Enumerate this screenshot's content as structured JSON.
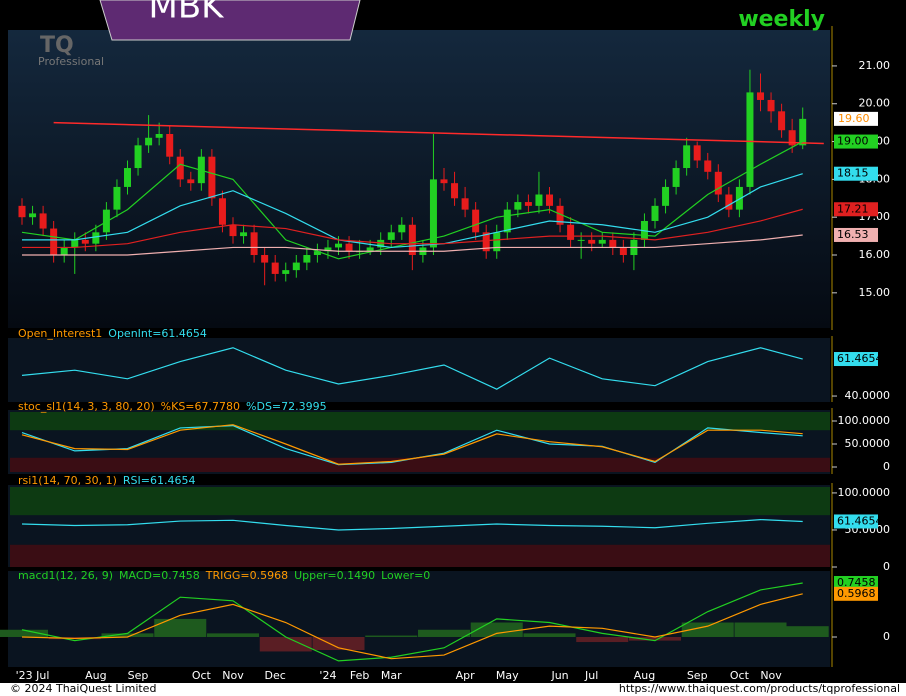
{
  "chart_data": [
    {
      "type": "candlestick",
      "title": "MBK",
      "subtitle": "weekly",
      "logo": "TQ",
      "logo_sub": "Professional",
      "x_labels": [
        "'23 Jul",
        "Aug",
        "Sep",
        "Oct",
        "Nov",
        "Dec",
        "'24",
        "Feb",
        "Mar",
        "Apr",
        "May",
        "Jun",
        "Jul",
        "Aug",
        "Sep",
        "Oct",
        "Nov"
      ],
      "x_label_index": [
        1,
        7,
        11,
        17,
        20,
        24,
        29,
        32,
        35,
        42,
        46,
        51,
        54,
        59,
        64,
        68,
        71
      ],
      "up_color": "#22d022",
      "down_color": "#e81c1c",
      "ohlc": [
        [
          17.3,
          17.5,
          16.8,
          17.0
        ],
        [
          17.0,
          17.3,
          16.8,
          17.1
        ],
        [
          17.1,
          17.3,
          16.5,
          16.7
        ],
        [
          16.7,
          16.9,
          15.8,
          16.0
        ],
        [
          16.0,
          16.4,
          15.8,
          16.2
        ],
        [
          16.2,
          16.6,
          15.5,
          16.4
        ],
        [
          16.4,
          16.6,
          16.1,
          16.3
        ],
        [
          16.3,
          16.8,
          16.1,
          16.6
        ],
        [
          16.6,
          17.4,
          16.4,
          17.2
        ],
        [
          17.2,
          18.0,
          17.0,
          17.8
        ],
        [
          17.8,
          18.5,
          17.6,
          18.3
        ],
        [
          18.3,
          19.1,
          18.1,
          18.9
        ],
        [
          18.9,
          19.7,
          18.7,
          19.1
        ],
        [
          19.1,
          19.5,
          18.9,
          19.2
        ],
        [
          19.2,
          19.4,
          18.4,
          18.6
        ],
        [
          18.6,
          18.8,
          17.8,
          18.0
        ],
        [
          18.0,
          18.2,
          17.7,
          17.9
        ],
        [
          17.9,
          18.8,
          17.7,
          18.6
        ],
        [
          18.6,
          18.8,
          17.3,
          17.5
        ],
        [
          17.5,
          17.7,
          16.6,
          16.8
        ],
        [
          16.8,
          17.0,
          16.3,
          16.5
        ],
        [
          16.5,
          16.8,
          16.3,
          16.6
        ],
        [
          16.6,
          16.8,
          15.8,
          16.0
        ],
        [
          16.0,
          16.2,
          15.2,
          15.8
        ],
        [
          15.8,
          16.0,
          15.3,
          15.5
        ],
        [
          15.5,
          15.8,
          15.3,
          15.6
        ],
        [
          15.6,
          16.0,
          15.4,
          15.8
        ],
        [
          15.8,
          16.2,
          15.6,
          16.0
        ],
        [
          16.0,
          16.3,
          15.8,
          16.1
        ],
        [
          16.1,
          16.4,
          15.9,
          16.2
        ],
        [
          16.2,
          16.5,
          16.0,
          16.3
        ],
        [
          16.3,
          16.5,
          15.9,
          16.1
        ],
        [
          16.1,
          16.4,
          15.9,
          16.1
        ],
        [
          16.1,
          16.4,
          16.0,
          16.2
        ],
        [
          16.2,
          16.6,
          16.0,
          16.4
        ],
        [
          16.4,
          16.8,
          16.2,
          16.6
        ],
        [
          16.6,
          17.0,
          16.4,
          16.8
        ],
        [
          16.8,
          17.0,
          15.6,
          16.0
        ],
        [
          16.0,
          16.4,
          15.8,
          16.2
        ],
        [
          16.2,
          19.2,
          16.0,
          18.0
        ],
        [
          18.0,
          18.3,
          17.7,
          17.9
        ],
        [
          17.9,
          18.2,
          17.3,
          17.5
        ],
        [
          17.5,
          17.8,
          17.0,
          17.2
        ],
        [
          17.2,
          17.4,
          16.4,
          16.6
        ],
        [
          16.6,
          16.8,
          15.9,
          16.1
        ],
        [
          16.1,
          16.8,
          15.9,
          16.6
        ],
        [
          16.6,
          17.4,
          16.4,
          17.2
        ],
        [
          17.2,
          17.6,
          17.0,
          17.4
        ],
        [
          17.4,
          17.6,
          17.1,
          17.3
        ],
        [
          17.3,
          18.2,
          17.1,
          17.6
        ],
        [
          17.6,
          17.8,
          17.1,
          17.3
        ],
        [
          17.3,
          17.5,
          16.6,
          16.8
        ],
        [
          16.8,
          17.0,
          16.2,
          16.4
        ],
        [
          16.4,
          16.6,
          15.9,
          16.4
        ],
        [
          16.4,
          16.6,
          16.1,
          16.3
        ],
        [
          16.3,
          16.6,
          16.2,
          16.4
        ],
        [
          16.4,
          16.6,
          16.0,
          16.2
        ],
        [
          16.2,
          16.4,
          15.8,
          16.0
        ],
        [
          16.0,
          16.6,
          15.6,
          16.4
        ],
        [
          16.4,
          17.1,
          16.2,
          16.9
        ],
        [
          16.9,
          17.5,
          16.7,
          17.3
        ],
        [
          17.3,
          18.0,
          17.1,
          17.8
        ],
        [
          17.8,
          18.5,
          17.6,
          18.3
        ],
        [
          18.3,
          19.1,
          18.1,
          18.9
        ],
        [
          18.9,
          19.0,
          18.3,
          18.5
        ],
        [
          18.5,
          18.7,
          18.0,
          18.2
        ],
        [
          18.2,
          18.4,
          17.4,
          17.6
        ],
        [
          17.6,
          17.8,
          17.0,
          17.2
        ],
        [
          17.2,
          18.0,
          17.0,
          17.8
        ],
        [
          17.8,
          20.9,
          17.6,
          20.3
        ],
        [
          20.3,
          20.8,
          19.8,
          20.1
        ],
        [
          20.1,
          20.3,
          19.5,
          19.8
        ],
        [
          19.8,
          20.0,
          19.1,
          19.3
        ],
        [
          19.3,
          19.6,
          18.7,
          18.9
        ],
        [
          18.9,
          19.9,
          18.8,
          19.6
        ]
      ],
      "last_label": "19.60",
      "last_color": "#ff8c00",
      "ylim": [
        14.07,
        21.95
      ],
      "yticks": [
        {
          "value": 15,
          "label": "15.00"
        },
        {
          "value": 16,
          "label": "16.00"
        },
        {
          "value": 17,
          "label": "17.00"
        },
        {
          "value": 18,
          "label": "18.00"
        },
        {
          "value": 19,
          "label": "19.00"
        },
        {
          "value": 20,
          "label": "20.00"
        },
        {
          "value": 21,
          "label": "21.00"
        }
      ],
      "overlay_x": [
        0,
        5,
        10,
        15,
        20,
        25,
        30,
        35,
        40,
        45,
        50,
        55,
        60,
        65,
        70,
        74
      ],
      "series": [
        {
          "color": "#22d022",
          "badge": "19.00",
          "values": [
            16.6,
            16.4,
            17.2,
            18.4,
            18.0,
            16.4,
            15.9,
            16.2,
            16.5,
            17.0,
            17.2,
            16.6,
            16.5,
            17.6,
            18.4,
            19.0
          ]
        },
        {
          "color": "#33ddee",
          "badge": "18.15",
          "values": [
            16.4,
            16.4,
            16.6,
            17.3,
            17.7,
            17.1,
            16.4,
            16.2,
            16.3,
            16.6,
            16.9,
            16.8,
            16.6,
            17.0,
            17.8,
            18.15
          ]
        },
        {
          "color": "#e02020",
          "badge": "17.21",
          "values": [
            16.2,
            16.2,
            16.3,
            16.6,
            16.8,
            16.7,
            16.4,
            16.3,
            16.3,
            16.4,
            16.5,
            16.5,
            16.4,
            16.6,
            16.9,
            17.21
          ]
        },
        {
          "color": "#f0b0b0",
          "badge": "16.53",
          "values": [
            16.0,
            16.0,
            16.0,
            16.1,
            16.2,
            16.2,
            16.1,
            16.1,
            16.1,
            16.2,
            16.2,
            16.2,
            16.2,
            16.3,
            16.4,
            16.53
          ]
        }
      ],
      "trendline": {
        "color": "#ff2a2a",
        "x": [
          3,
          76
        ],
        "values": [
          19.5,
          18.95
        ]
      }
    },
    {
      "type": "line",
      "legend": [
        {
          "text": "Open_Interest1",
          "color": "#ff9900"
        },
        {
          "text": "OpenInt=61.4654",
          "color": "#33ddee"
        }
      ],
      "ylim": [
        37.7,
        72.5
      ],
      "yticks": [
        {
          "value": 40,
          "label": "40.0000"
        }
      ],
      "series": [
        {
          "color": "#33ddee",
          "badge": "61.4654",
          "values": [
            52,
            55,
            50,
            60,
            68,
            55,
            47,
            52,
            58,
            44,
            62,
            50,
            46,
            60,
            68,
            61.4654
          ]
        }
      ]
    },
    {
      "type": "line",
      "legend": [
        {
          "text": "stoc_sl1(14, 3, 3, 80, 20)",
          "color": "#ff9900"
        },
        {
          "text": "%KS=67.7780",
          "color": "#ff9900"
        },
        {
          "text": "%DS=72.3995",
          "color": "#33ddee"
        }
      ],
      "bands": [
        80,
        20
      ],
      "ylim": [
        -10.9,
        119.6
      ],
      "yticks": [
        {
          "value": 0,
          "label": "0"
        },
        {
          "value": 50,
          "label": "50.0000"
        },
        {
          "value": 100,
          "label": "100.0000"
        }
      ],
      "series": [
        {
          "color": "#33ddee",
          "values": [
            75,
            35,
            40,
            85,
            90,
            40,
            5,
            10,
            30,
            80,
            50,
            45,
            10,
            85,
            75,
            67.778
          ]
        },
        {
          "color": "#ff9900",
          "values": [
            70,
            40,
            38,
            80,
            92,
            50,
            6,
            12,
            28,
            72,
            55,
            44,
            12,
            80,
            80,
            72.3995
          ]
        }
      ]
    },
    {
      "type": "line",
      "legend": [
        {
          "text": "rsi1(14, 70, 30, 1)",
          "color": "#ff9900"
        },
        {
          "text": "RSI=61.4654",
          "color": "#33ddee"
        }
      ],
      "bands": [
        70,
        30
      ],
      "ylim": [
        0,
        108
      ],
      "yticks": [
        {
          "value": 0,
          "label": "0"
        },
        {
          "value": 50,
          "label": "50.0000"
        },
        {
          "value": 100,
          "label": "100.0000"
        }
      ],
      "series": [
        {
          "color": "#33ddee",
          "badge": "61.4654",
          "values": [
            58,
            56,
            57,
            62,
            63,
            56,
            50,
            52,
            55,
            58,
            56,
            55,
            53,
            59,
            64,
            61.4654
          ]
        }
      ]
    },
    {
      "type": "macd",
      "legend": [
        {
          "text": "macd1(12, 26, 9)",
          "color": "#22d022"
        },
        {
          "text": "MACD=0.7458",
          "color": "#22d022"
        },
        {
          "text": "TRIGG=0.5968",
          "color": "#ff9900"
        },
        {
          "text": "Upper=0.1490",
          "color": "#22d022"
        },
        {
          "text": "Lower=0",
          "color": "#22d022"
        }
      ],
      "ylim": [
        -0.387,
        0.898
      ],
      "yticks": [
        0
      ],
      "histogram": [
        0.1,
        -0.03,
        0.05,
        0.25,
        0.05,
        -0.2,
        -0.18,
        0.02,
        0.1,
        0.2,
        0.05,
        -0.07,
        -0.05,
        0.2,
        0.2,
        0.149
      ],
      "series": [
        {
          "color": "#22d022",
          "badge": "0.7458",
          "values": [
            0.1,
            -0.05,
            0.05,
            0.55,
            0.5,
            0.0,
            -0.33,
            -0.28,
            -0.15,
            0.25,
            0.2,
            0.05,
            -0.05,
            0.35,
            0.65,
            0.7458
          ]
        },
        {
          "color": "#ff9900",
          "badge": "0.5968",
          "values": [
            0.0,
            -0.02,
            0.0,
            0.3,
            0.45,
            0.2,
            -0.15,
            -0.3,
            -0.25,
            0.05,
            0.15,
            0.12,
            0.0,
            0.15,
            0.45,
            0.5968
          ]
        }
      ]
    }
  ],
  "footer": {
    "copyright": "© 2024 ThaiQuest Limited",
    "url": "https://www.thaiquest.com/products/tqprofessional"
  }
}
